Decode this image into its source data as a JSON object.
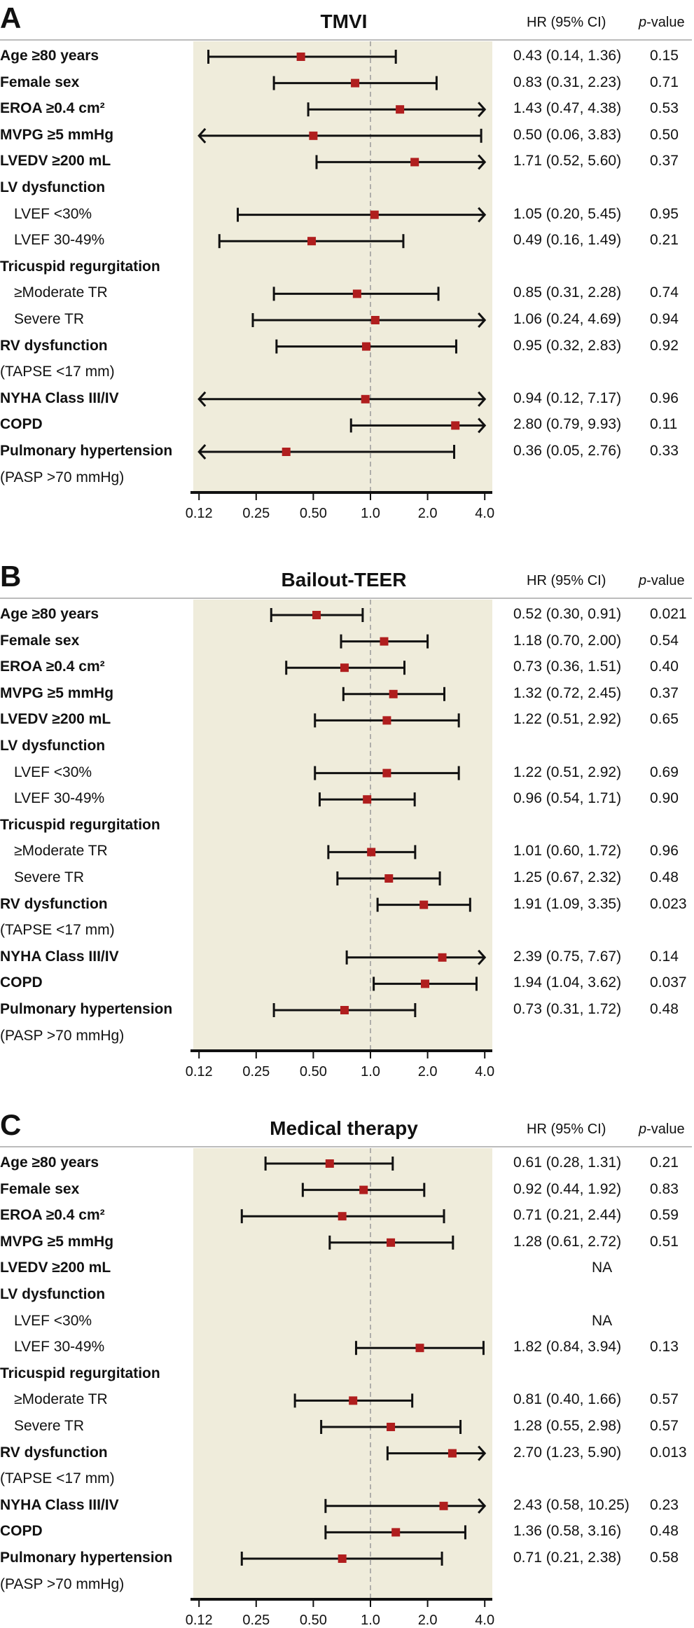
{
  "colors": {
    "shade": "#efecdb",
    "marker": "#b01e1e",
    "line": "#111111",
    "ref": "#9a9a9a"
  },
  "chart_data": [
    {
      "type": "forest",
      "panel": "A",
      "title": "TMVI",
      "header_hr": "HR (95% CI)",
      "header_p_italic": "p",
      "header_p_rest": "-value",
      "xscale": "log2",
      "xlim": [
        0.125,
        4.0
      ],
      "ticks": [
        0.125,
        0.25,
        0.5,
        1.0,
        2.0,
        4.0
      ],
      "tick_labels": [
        "0.12",
        "0.25",
        "0.50",
        "1.0",
        "2.0",
        "4.0"
      ],
      "reference": 1.0,
      "rows": [
        {
          "label": "Age ≥80 years",
          "kind": "main",
          "hr": 0.43,
          "lo": 0.14,
          "hi": 1.36,
          "text": "0.43 (0.14, 1.36)",
          "p": "0.15"
        },
        {
          "label": "Female sex",
          "kind": "main",
          "hr": 0.83,
          "lo": 0.31,
          "hi": 2.23,
          "text": "0.83 (0.31, 2.23)",
          "p": "0.71"
        },
        {
          "label": "EROA ≥0.4 cm²",
          "kind": "main",
          "hr": 1.43,
          "lo": 0.47,
          "hi": 4.38,
          "text": "1.43 (0.47, 4.38)",
          "p": "0.53"
        },
        {
          "label": "MVPG ≥5 mmHg",
          "kind": "main",
          "hr": 0.5,
          "lo": 0.06,
          "hi": 3.83,
          "text": "0.50 (0.06, 3.83)",
          "p": "0.50"
        },
        {
          "label": "LVEDV ≥200 mL",
          "kind": "main",
          "hr": 1.71,
          "lo": 0.52,
          "hi": 5.6,
          "text": "1.71 (0.52, 5.60)",
          "p": "0.37"
        },
        {
          "label": "LV dysfunction",
          "kind": "main"
        },
        {
          "label": "LVEF <30%",
          "kind": "sub",
          "hr": 1.05,
          "lo": 0.2,
          "hi": 5.45,
          "text": "1.05 (0.20, 5.45)",
          "p": "0.95"
        },
        {
          "label": "LVEF 30-49%",
          "kind": "sub",
          "hr": 0.49,
          "lo": 0.16,
          "hi": 1.49,
          "text": "0.49 (0.16, 1.49)",
          "p": "0.21"
        },
        {
          "label": "Tricuspid regurgitation",
          "kind": "main"
        },
        {
          "label": "≥Moderate TR",
          "kind": "sub",
          "hr": 0.85,
          "lo": 0.31,
          "hi": 2.28,
          "text": "0.85 (0.31, 2.28)",
          "p": "0.74"
        },
        {
          "label": "Severe TR",
          "kind": "sub",
          "hr": 1.06,
          "lo": 0.24,
          "hi": 4.69,
          "text": "1.06 (0.24, 4.69)",
          "p": "0.94"
        },
        {
          "label": "RV dysfunction",
          "kind": "main",
          "hr": 0.95,
          "lo": 0.32,
          "hi": 2.83,
          "text": "0.95 (0.32, 2.83)",
          "p": "0.92"
        },
        {
          "label": "(TAPSE <17 mm)",
          "kind": "note"
        },
        {
          "label": "NYHA Class III/IV",
          "kind": "main",
          "hr": 0.94,
          "lo": 0.12,
          "hi": 7.17,
          "text": "0.94 (0.12, 7.17)",
          "p": "0.96"
        },
        {
          "label": "COPD",
          "kind": "main",
          "hr": 2.8,
          "lo": 0.79,
          "hi": 9.93,
          "text": "2.80 (0.79, 9.93)",
          "p": "0.11"
        },
        {
          "label": "Pulmonary hypertension",
          "kind": "main",
          "hr": 0.36,
          "lo": 0.05,
          "hi": 2.76,
          "text": "0.36 (0.05, 2.76)",
          "p": "0.33"
        },
        {
          "label": "(PASP >70 mmHg)",
          "kind": "note"
        }
      ]
    },
    {
      "type": "forest",
      "panel": "B",
      "title": "Bailout-TEER",
      "header_hr": "HR (95% CI)",
      "header_p_italic": "p",
      "header_p_rest": "-value",
      "xscale": "log2",
      "xlim": [
        0.125,
        4.0
      ],
      "ticks": [
        0.125,
        0.25,
        0.5,
        1.0,
        2.0,
        4.0
      ],
      "tick_labels": [
        "0.12",
        "0.25",
        "0.50",
        "1.0",
        "2.0",
        "4.0"
      ],
      "reference": 1.0,
      "rows": [
        {
          "label": "Age ≥80 years",
          "kind": "main",
          "hr": 0.52,
          "lo": 0.3,
          "hi": 0.91,
          "text": "0.52 (0.30, 0.91)",
          "p": "0.021"
        },
        {
          "label": "Female sex",
          "kind": "main",
          "hr": 1.18,
          "lo": 0.7,
          "hi": 2.0,
          "text": "1.18 (0.70, 2.00)",
          "p": "0.54"
        },
        {
          "label": "EROA ≥0.4 cm²",
          "kind": "main",
          "hr": 0.73,
          "lo": 0.36,
          "hi": 1.51,
          "text": "0.73 (0.36, 1.51)",
          "p": "0.40"
        },
        {
          "label": "MVPG ≥5 mmHg",
          "kind": "main",
          "hr": 1.32,
          "lo": 0.72,
          "hi": 2.45,
          "text": "1.32 (0.72, 2.45)",
          "p": "0.37"
        },
        {
          "label": "LVEDV ≥200 mL",
          "kind": "main",
          "hr": 1.22,
          "lo": 0.51,
          "hi": 2.92,
          "text": "1.22 (0.51, 2.92)",
          "p": "0.65"
        },
        {
          "label": "LV dysfunction",
          "kind": "main"
        },
        {
          "label": "LVEF <30%",
          "kind": "sub",
          "hr": 1.22,
          "lo": 0.51,
          "hi": 2.92,
          "text": "1.22 (0.51, 2.92)",
          "p": "0.69"
        },
        {
          "label": "LVEF 30-49%",
          "kind": "sub",
          "hr": 0.96,
          "lo": 0.54,
          "hi": 1.71,
          "text": "0.96 (0.54, 1.71)",
          "p": "0.90"
        },
        {
          "label": "Tricuspid regurgitation",
          "kind": "main"
        },
        {
          "label": "≥Moderate TR",
          "kind": "sub",
          "hr": 1.01,
          "lo": 0.6,
          "hi": 1.72,
          "text": "1.01 (0.60, 1.72)",
          "p": "0.96"
        },
        {
          "label": "Severe TR",
          "kind": "sub",
          "hr": 1.25,
          "lo": 0.67,
          "hi": 2.32,
          "text": "1.25 (0.67, 2.32)",
          "p": "0.48"
        },
        {
          "label": "RV dysfunction",
          "kind": "main",
          "hr": 1.91,
          "lo": 1.09,
          "hi": 3.35,
          "text": "1.91 (1.09, 3.35)",
          "p": "0.023"
        },
        {
          "label": "(TAPSE <17 mm)",
          "kind": "note"
        },
        {
          "label": "NYHA Class III/IV",
          "kind": "main",
          "hr": 2.39,
          "lo": 0.75,
          "hi": 7.67,
          "text": "2.39 (0.75, 7.67)",
          "p": "0.14"
        },
        {
          "label": "COPD",
          "kind": "main",
          "hr": 1.94,
          "lo": 1.04,
          "hi": 3.62,
          "text": "1.94 (1.04, 3.62)",
          "p": "0.037"
        },
        {
          "label": "Pulmonary hypertension",
          "kind": "main",
          "hr": 0.73,
          "lo": 0.31,
          "hi": 1.72,
          "text": "0.73 (0.31, 1.72)",
          "p": "0.48"
        },
        {
          "label": "(PASP >70 mmHg)",
          "kind": "note"
        }
      ]
    },
    {
      "type": "forest",
      "panel": "C",
      "title": "Medical therapy",
      "header_hr": "HR (95% CI)",
      "header_p_italic": "p",
      "header_p_rest": "-value",
      "xscale": "log2",
      "xlim": [
        0.125,
        4.0
      ],
      "ticks": [
        0.125,
        0.25,
        0.5,
        1.0,
        2.0,
        4.0
      ],
      "tick_labels": [
        "0.12",
        "0.25",
        "0.50",
        "1.0",
        "2.0",
        "4.0"
      ],
      "reference": 1.0,
      "rows": [
        {
          "label": "Age ≥80 years",
          "kind": "main",
          "hr": 0.61,
          "lo": 0.28,
          "hi": 1.31,
          "text": "0.61 (0.28, 1.31)",
          "p": "0.21"
        },
        {
          "label": "Female sex",
          "kind": "main",
          "hr": 0.92,
          "lo": 0.44,
          "hi": 1.92,
          "text": "0.92 (0.44, 1.92)",
          "p": "0.83"
        },
        {
          "label": "EROA ≥0.4 cm²",
          "kind": "main",
          "hr": 0.71,
          "lo": 0.21,
          "hi": 2.44,
          "text": "0.71 (0.21, 2.44)",
          "p": "0.59"
        },
        {
          "label": "MVPG ≥5 mmHg",
          "kind": "main",
          "hr": 1.28,
          "lo": 0.61,
          "hi": 2.72,
          "text": "1.28 (0.61, 2.72)",
          "p": "0.51"
        },
        {
          "label": "LVEDV ≥200 mL",
          "kind": "main",
          "na": "NA"
        },
        {
          "label": "LV dysfunction",
          "kind": "main"
        },
        {
          "label": "LVEF <30%",
          "kind": "sub",
          "na": "NA"
        },
        {
          "label": "LVEF 30-49%",
          "kind": "sub",
          "hr": 1.82,
          "lo": 0.84,
          "hi": 3.94,
          "text": "1.82 (0.84, 3.94)",
          "p": "0.13"
        },
        {
          "label": "Tricuspid regurgitation",
          "kind": "main"
        },
        {
          "label": "≥Moderate TR",
          "kind": "sub",
          "hr": 0.81,
          "lo": 0.4,
          "hi": 1.66,
          "text": "0.81 (0.40, 1.66)",
          "p": "0.57"
        },
        {
          "label": "Severe TR",
          "kind": "sub",
          "hr": 1.28,
          "lo": 0.55,
          "hi": 2.98,
          "text": "1.28 (0.55, 2.98)",
          "p": "0.57"
        },
        {
          "label": "RV dysfunction",
          "kind": "main",
          "hr": 2.7,
          "lo": 1.23,
          "hi": 5.9,
          "text": "2.70 (1.23, 5.90)",
          "p": "0.013"
        },
        {
          "label": "(TAPSE <17 mm)",
          "kind": "note"
        },
        {
          "label": "NYHA Class III/IV",
          "kind": "main",
          "hr": 2.43,
          "lo": 0.58,
          "hi": 10.25,
          "text": "2.43 (0.58, 10.25)",
          "p": "0.23"
        },
        {
          "label": "COPD",
          "kind": "main",
          "hr": 1.36,
          "lo": 0.58,
          "hi": 3.16,
          "text": "1.36 (0.58, 3.16)",
          "p": "0.48"
        },
        {
          "label": "Pulmonary hypertension",
          "kind": "main",
          "hr": 0.71,
          "lo": 0.21,
          "hi": 2.38,
          "text": "0.71 (0.21, 2.38)",
          "p": "0.58"
        },
        {
          "label": "(PASP >70 mmHg)",
          "kind": "note"
        }
      ]
    }
  ]
}
